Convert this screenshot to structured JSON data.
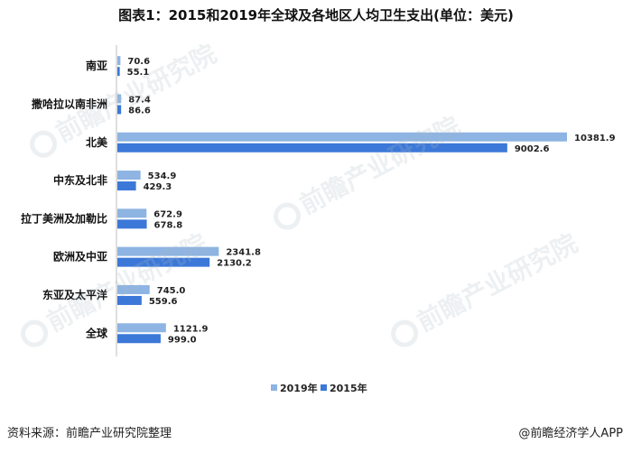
{
  "page": {
    "source": "资料来源：前瞻产业研究院整理",
    "brand": "@前瞻经济学人APP",
    "watermark": "前瞻产业研究院"
  },
  "chart_data": {
    "type": "bar",
    "orientation": "horizontal",
    "title": "图表1：2015和2019年全球及各地区人均卫生支出(单位：美元)",
    "categories": [
      "南亚",
      "撒哈拉以南非洲",
      "北美",
      "中东及北非",
      "拉丁美洲及加勒比",
      "欧洲及中亚",
      "东亚及太平洋",
      "全球"
    ],
    "series": [
      {
        "name": "2019年",
        "color": "#8DB4E2",
        "values": [
          70.6,
          87.4,
          10381.9,
          534.9,
          672.9,
          2341.8,
          745.0,
          1121.9
        ],
        "labels": [
          "70.6",
          "87.4",
          "10381.9",
          "534.9",
          "672.9",
          "2341.8",
          "745.0",
          "1121.9"
        ]
      },
      {
        "name": "2015年",
        "color": "#3B78D8",
        "values": [
          55.1,
          86.6,
          9002.6,
          429.3,
          678.8,
          2130.2,
          559.6,
          999.0
        ],
        "labels": [
          "55.1",
          "86.6",
          "9002.6",
          "429.3",
          "678.8",
          "2130.2",
          "559.6",
          "999.0"
        ]
      }
    ],
    "xlim": [
      0,
      10381.9
    ],
    "grid": false,
    "legend_position": "bottom"
  }
}
